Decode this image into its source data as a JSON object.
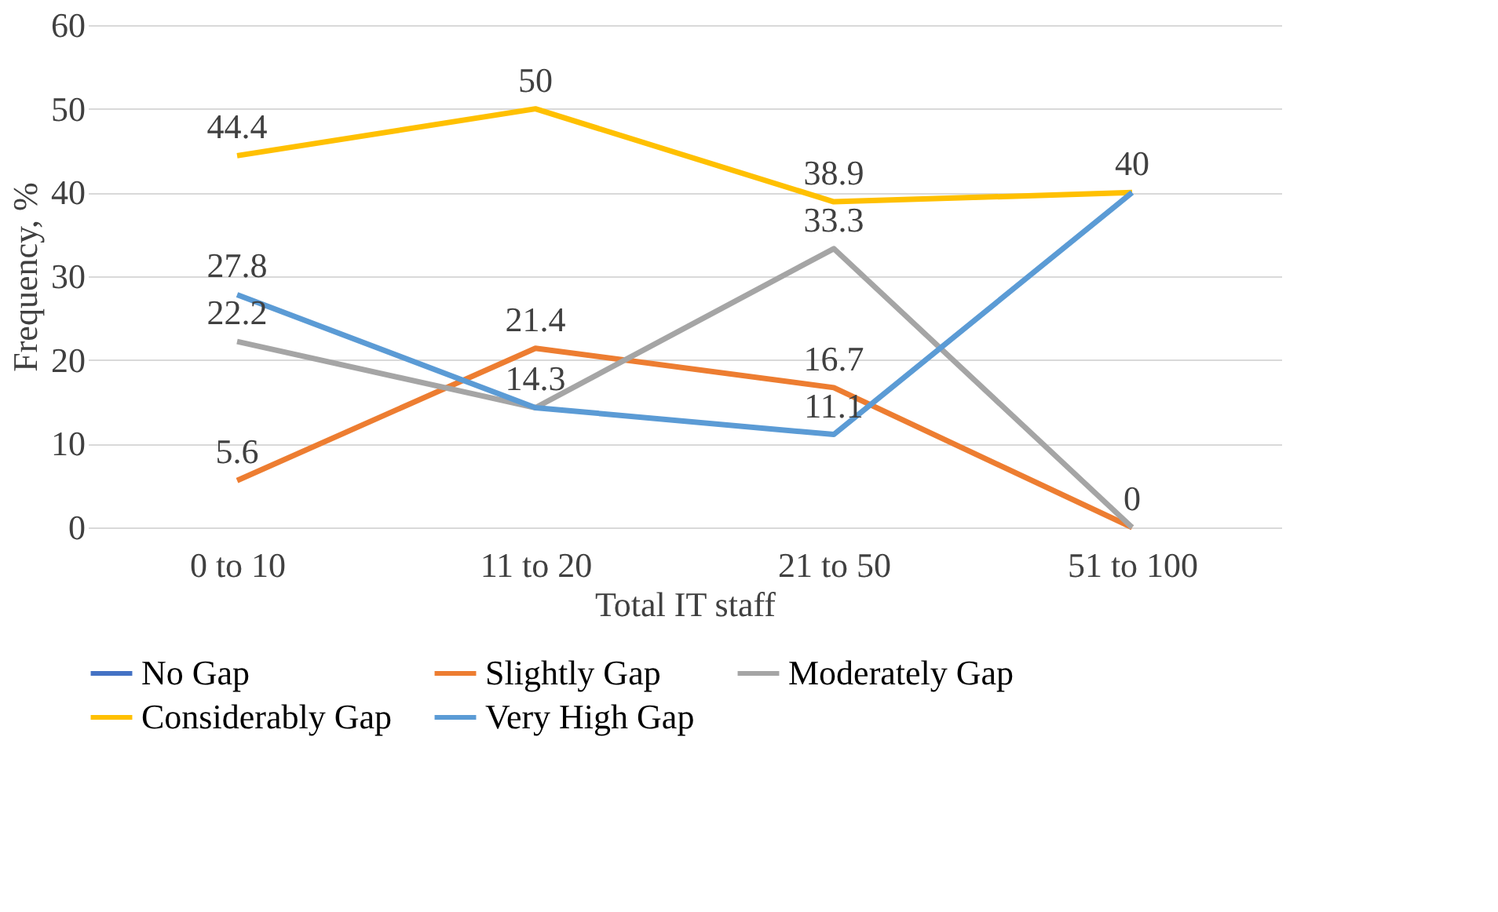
{
  "chart_data": {
    "type": "line",
    "xlabel": "Total IT staff",
    "ylabel": "Frequency, %",
    "categories": [
      "0 to 10",
      "11 to 20",
      "21 to 50",
      "51 to 100"
    ],
    "series": [
      {
        "name": "No Gap",
        "color": "#4472c4",
        "values": [
          null,
          null,
          null,
          null
        ]
      },
      {
        "name": "Slightly Gap",
        "color": "#ed7d31",
        "values": [
          5.6,
          21.4,
          16.7,
          0
        ],
        "value_labels": [
          "5.6",
          "21.4",
          "16.7",
          "0"
        ]
      },
      {
        "name": "Moderately Gap",
        "color": "#a5a5a5",
        "values": [
          22.2,
          14.3,
          33.3,
          0
        ],
        "value_labels": [
          "22.2",
          "14.3",
          "33.3",
          null
        ]
      },
      {
        "name": "Considerably Gap",
        "color": "#ffc000",
        "values": [
          44.4,
          50,
          38.9,
          40
        ],
        "value_labels": [
          "44.4",
          "50",
          "38.9",
          "40"
        ]
      },
      {
        "name": "Very High Gap",
        "color": "#5b9bd5",
        "values": [
          27.8,
          14.3,
          11.1,
          40
        ],
        "value_labels": [
          "27.8",
          null,
          "11.1",
          null
        ]
      }
    ],
    "ylim": [
      0,
      60
    ],
    "yticks": [
      0,
      10,
      20,
      30,
      40,
      50,
      60
    ],
    "grid": "y",
    "legend": "bottom",
    "marker": "none",
    "line_style": "solid"
  }
}
